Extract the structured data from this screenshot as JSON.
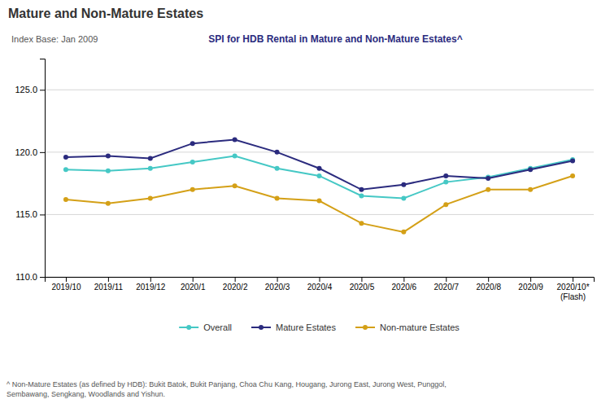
{
  "chart_data": {
    "type": "line",
    "title": "Mature and Non-Mature Estates",
    "subtitle": "SPI for HDB Rental in Mature and Non-Mature Estates^",
    "annotations": [
      "Index Base: Jan 2009",
      "^ Non-Mature Estates (as defined by HDB): Bukit Batok, Bukit Panjang, Choa Chu Kang, Hougang, Jurong East, Jurong West, Punggol,\nSembawang, Sengkang, Woodlands and Yishun."
    ],
    "categories": [
      "2019/10",
      "2019/11",
      "2019/12",
      "2020/1",
      "2020/2",
      "2020/3",
      "2020/4",
      "2020/5",
      "2020/6",
      "2020/7",
      "2020/8",
      "2020/9",
      "2020/10*\n(Flash)"
    ],
    "series": [
      {
        "name": "Overall",
        "color": "#45C8C5",
        "values": [
          118.6,
          118.5,
          118.7,
          119.2,
          119.7,
          118.7,
          118.1,
          116.5,
          116.3,
          117.6,
          118.0,
          118.7,
          119.4
        ]
      },
      {
        "name": "Mature Estates",
        "color": "#2B2B7E",
        "values": [
          119.6,
          119.7,
          119.5,
          120.7,
          121.0,
          120.0,
          118.7,
          117.0,
          117.4,
          118.1,
          117.9,
          118.6,
          119.3
        ]
      },
      {
        "name": "Non-mature Estates",
        "color": "#D4A017",
        "values": [
          116.2,
          115.9,
          116.3,
          117.0,
          117.3,
          116.3,
          116.1,
          114.3,
          113.6,
          115.8,
          117.0,
          117.0,
          118.1
        ]
      }
    ],
    "ylim": [
      110.0,
      127.5
    ],
    "yticks": [
      {
        "value": 110.0,
        "label": "110.0"
      },
      {
        "value": 115.0,
        "label": "115.0"
      },
      {
        "value": 120.0,
        "label": "120.0"
      },
      {
        "value": 125.0,
        "label": "125.0"
      }
    ],
    "grid": true,
    "legend": "bottom",
    "marker": "circle"
  }
}
